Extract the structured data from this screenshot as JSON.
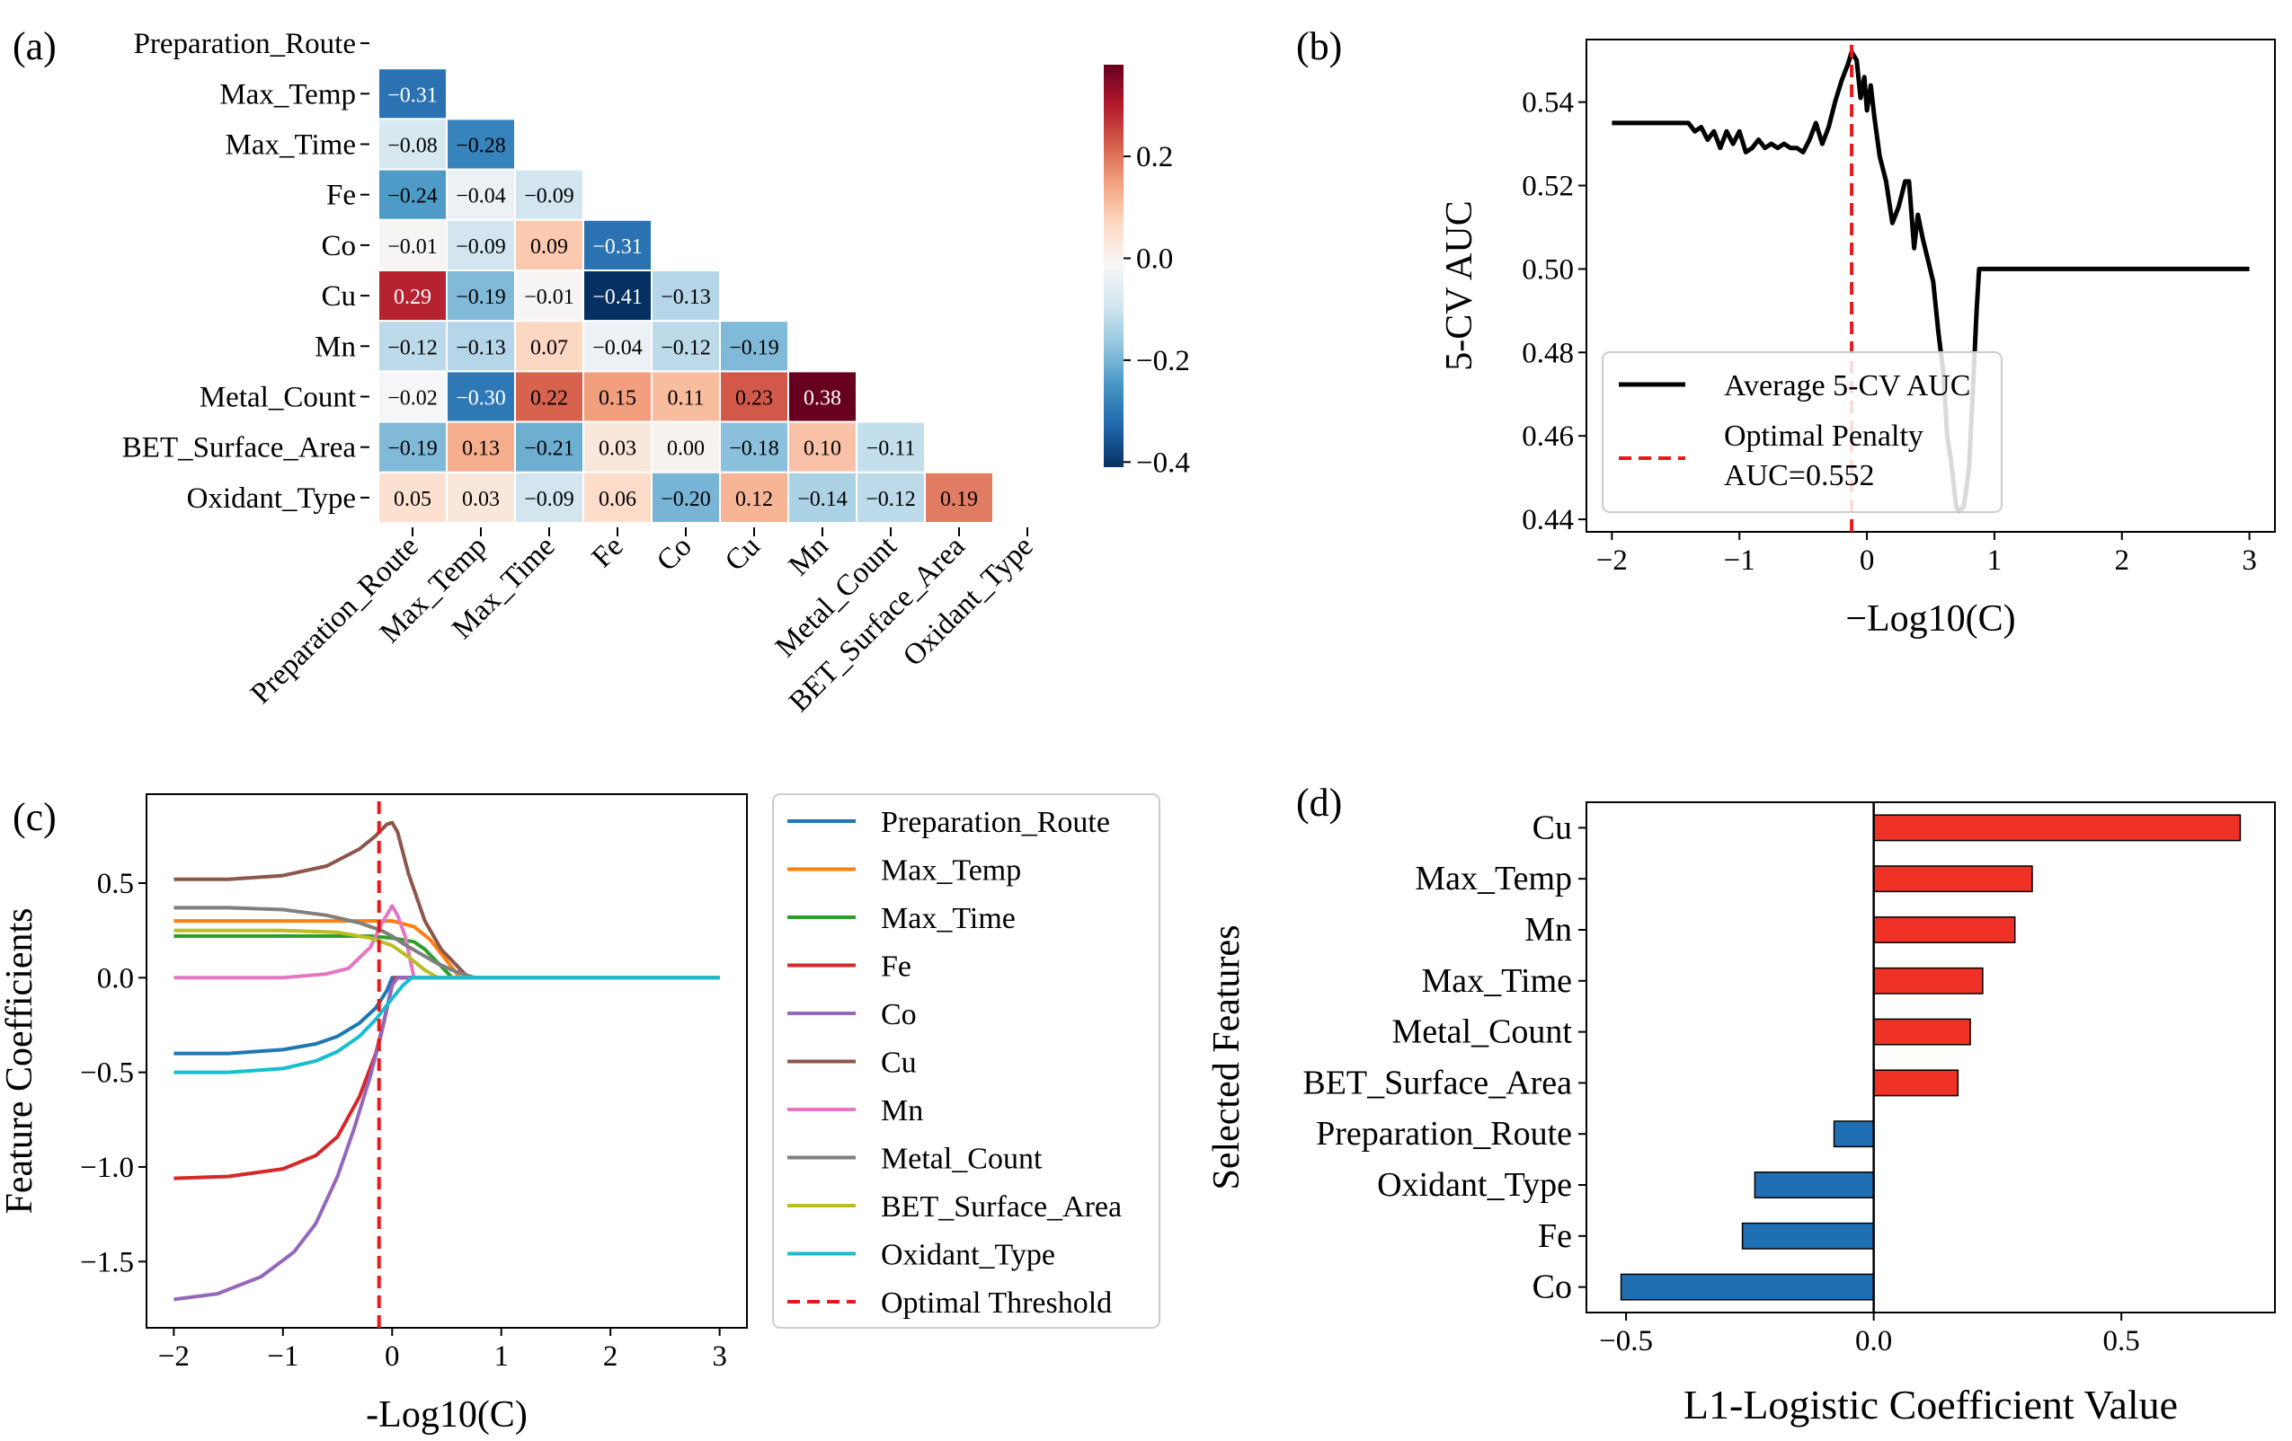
{
  "panels": {
    "a": "(a)",
    "b": "(b)",
    "c": "(c)",
    "d": "(d)"
  },
  "chart_data": [
    {
      "id": "a",
      "type": "heatmap",
      "title": "",
      "variables": [
        "Preparation_Route",
        "Max_Temp",
        "Max_Time",
        "Fe",
        "Co",
        "Cu",
        "Mn",
        "Metal_Count",
        "BET_Surface_Area",
        "Oxidant_Type"
      ],
      "lower_triangle": [
        [],
        [
          -0.31
        ],
        [
          -0.08,
          -0.28
        ],
        [
          -0.24,
          -0.04,
          -0.09
        ],
        [
          -0.01,
          -0.09,
          0.09,
          -0.31
        ],
        [
          0.29,
          -0.19,
          -0.01,
          -0.41,
          -0.13
        ],
        [
          -0.12,
          -0.13,
          0.07,
          -0.04,
          -0.12,
          -0.19
        ],
        [
          -0.02,
          -0.3,
          0.22,
          0.15,
          0.11,
          0.23,
          0.38
        ],
        [
          -0.19,
          0.13,
          -0.21,
          0.03,
          0.0,
          -0.18,
          0.1,
          -0.11
        ],
        [
          0.05,
          0.03,
          -0.09,
          0.06,
          -0.2,
          0.12,
          -0.14,
          -0.12,
          0.19
        ]
      ],
      "colorbar": {
        "min": -0.41,
        "max": 0.38,
        "ticks": [
          0.2,
          0.0,
          -0.2,
          -0.4
        ],
        "tick_labels": [
          "0.2",
          "0.0",
          "−0.2",
          "−0.4"
        ],
        "colormap": "RdBu_r"
      }
    },
    {
      "id": "b",
      "type": "line",
      "xlabel": "−Log10(C)",
      "ylabel": "5-CV AUC",
      "xlim": [
        -2.2,
        3.2
      ],
      "ylim": [
        0.437,
        0.555
      ],
      "xticks": [
        -2,
        -1,
        0,
        1,
        2,
        3
      ],
      "xtick_labels": [
        "−2",
        "−1",
        "0",
        "1",
        "2",
        "3"
      ],
      "yticks": [
        0.44,
        0.46,
        0.48,
        0.5,
        0.52,
        0.54
      ],
      "ytick_labels": [
        "0.44",
        "0.46",
        "0.48",
        "0.50",
        "0.52",
        "0.54"
      ],
      "series": [
        {
          "name": "Average 5-CV AUC",
          "color": "#000000",
          "style": "solid",
          "x": [
            -2,
            -1.4,
            -1.35,
            -1.3,
            -1.25,
            -1.2,
            -1.15,
            -1.1,
            -1.05,
            -1.0,
            -0.95,
            -0.9,
            -0.85,
            -0.8,
            -0.75,
            -0.7,
            -0.65,
            -0.6,
            -0.55,
            -0.5,
            -0.45,
            -0.4,
            -0.35,
            -0.3,
            -0.25,
            -0.2,
            -0.15,
            -0.12,
            -0.08,
            -0.05,
            -0.02,
            0.0,
            0.03,
            0.06,
            0.1,
            0.15,
            0.2,
            0.25,
            0.3,
            0.33,
            0.37,
            0.4,
            0.44,
            0.48,
            0.52,
            0.56,
            0.6,
            0.63,
            0.66,
            0.7,
            0.72,
            0.76,
            0.8,
            0.83,
            0.86,
            0.88,
            1.0,
            2.0,
            3.0
          ],
          "y": [
            0.535,
            0.535,
            0.533,
            0.534,
            0.531,
            0.533,
            0.529,
            0.533,
            0.53,
            0.533,
            0.528,
            0.529,
            0.531,
            0.529,
            0.53,
            0.529,
            0.53,
            0.529,
            0.529,
            0.528,
            0.531,
            0.535,
            0.53,
            0.534,
            0.54,
            0.545,
            0.549,
            0.552,
            0.55,
            0.541,
            0.546,
            0.538,
            0.544,
            0.536,
            0.527,
            0.521,
            0.511,
            0.515,
            0.521,
            0.521,
            0.505,
            0.513,
            0.507,
            0.502,
            0.497,
            0.485,
            0.475,
            0.46,
            0.454,
            0.443,
            0.442,
            0.443,
            0.452,
            0.47,
            0.49,
            0.5,
            0.5,
            0.5,
            0.5
          ]
        },
        {
          "name": "Optimal Penalty\nAUC=0.552",
          "color": "#e41a1c",
          "style": "dashed",
          "x": [
            -0.12,
            -0.12
          ],
          "y": [
            0.437,
            0.555
          ]
        }
      ],
      "legend": {
        "placement": "lower-left",
        "entries": [
          "Average 5-CV AUC",
          "Optimal Penalty",
          "AUC=0.552"
        ]
      }
    },
    {
      "id": "c",
      "type": "line",
      "xlabel": "-Log10(C)",
      "ylabel": "Feature Coefficients",
      "xlim": [
        -2.25,
        3.25
      ],
      "ylim": [
        -1.85,
        0.97
      ],
      "xticks": [
        -2,
        -1,
        0,
        1,
        2,
        3
      ],
      "xtick_labels": [
        "−2",
        "−1",
        "0",
        "1",
        "2",
        "3"
      ],
      "yticks": [
        -1.5,
        -1.0,
        -0.5,
        0.0,
        0.5
      ],
      "ytick_labels": [
        "−1.5",
        "−1.0",
        "−0.5",
        "0.0",
        "0.5"
      ],
      "series": [
        {
          "name": "Preparation_Route",
          "color": "#1f77b4",
          "x": [
            -2,
            -1.5,
            -1.0,
            -0.7,
            -0.5,
            -0.3,
            -0.15,
            -0.05,
            0.0,
            0.1,
            3.0
          ],
          "y": [
            -0.4,
            -0.4,
            -0.38,
            -0.35,
            -0.31,
            -0.24,
            -0.16,
            -0.07,
            0.0,
            0.0,
            0.0
          ]
        },
        {
          "name": "Max_Temp",
          "color": "#ff7f0e",
          "x": [
            -2,
            -1.0,
            -0.5,
            -0.2,
            0.0,
            0.2,
            0.35,
            0.5,
            0.62,
            3.0
          ],
          "y": [
            0.3,
            0.3,
            0.3,
            0.3,
            0.3,
            0.27,
            0.2,
            0.09,
            0.0,
            0.0
          ]
        },
        {
          "name": "Max_Time",
          "color": "#2ca02c",
          "x": [
            -2,
            -1.0,
            -0.5,
            -0.2,
            0.0,
            0.2,
            0.3,
            0.4,
            0.5,
            0.55,
            3.0
          ],
          "y": [
            0.22,
            0.22,
            0.22,
            0.22,
            0.21,
            0.19,
            0.15,
            0.09,
            0.03,
            0.0,
            0.0
          ]
        },
        {
          "name": "Fe",
          "color": "#d62728",
          "x": [
            -2,
            -1.5,
            -1.0,
            -0.7,
            -0.5,
            -0.3,
            -0.15,
            -0.08,
            0.0,
            0.03,
            3.0
          ],
          "y": [
            -1.06,
            -1.05,
            -1.01,
            -0.94,
            -0.84,
            -0.63,
            -0.4,
            -0.24,
            -0.04,
            0.0,
            0.0
          ]
        },
        {
          "name": "Co",
          "color": "#9467bd",
          "x": [
            -2,
            -1.6,
            -1.2,
            -0.9,
            -0.7,
            -0.5,
            -0.35,
            -0.2,
            -0.1,
            0.0,
            0.05,
            3.0
          ],
          "y": [
            -1.7,
            -1.67,
            -1.58,
            -1.45,
            -1.3,
            -1.05,
            -0.8,
            -0.52,
            -0.3,
            -0.04,
            0.0,
            0.0
          ]
        },
        {
          "name": "Cu",
          "color": "#8c564b",
          "x": [
            -2,
            -1.5,
            -1.0,
            -0.6,
            -0.3,
            -0.15,
            -0.05,
            0.0,
            0.05,
            0.15,
            0.3,
            0.45,
            0.6,
            0.7,
            3.0
          ],
          "y": [
            0.52,
            0.52,
            0.54,
            0.59,
            0.68,
            0.75,
            0.81,
            0.82,
            0.77,
            0.55,
            0.3,
            0.15,
            0.06,
            0.0,
            0.0
          ]
        },
        {
          "name": "Mn",
          "color": "#e377c2",
          "x": [
            -2,
            -1.0,
            -0.6,
            -0.4,
            -0.2,
            -0.1,
            -0.03,
            0.0,
            0.05,
            0.12,
            0.2,
            3.0
          ],
          "y": [
            0.0,
            0.0,
            0.02,
            0.05,
            0.16,
            0.28,
            0.35,
            0.38,
            0.33,
            0.22,
            0.0,
            0.0
          ]
        },
        {
          "name": "Metal_Count",
          "color": "#7f7f7f",
          "x": [
            -2,
            -1.5,
            -1.0,
            -0.6,
            -0.3,
            -0.1,
            0.0,
            0.1,
            0.25,
            0.4,
            0.55,
            0.7,
            0.76,
            3.0
          ],
          "y": [
            0.37,
            0.37,
            0.36,
            0.33,
            0.29,
            0.25,
            0.22,
            0.18,
            0.13,
            0.08,
            0.04,
            0.01,
            0.0,
            0.0
          ]
        },
        {
          "name": "BET_Surface_Area",
          "color": "#bcbd22",
          "x": [
            -2,
            -1.0,
            -0.5,
            -0.2,
            0.0,
            0.15,
            0.3,
            0.42,
            3.0
          ],
          "y": [
            0.25,
            0.25,
            0.24,
            0.21,
            0.17,
            0.11,
            0.04,
            0.0,
            0.0
          ]
        },
        {
          "name": "Oxidant_Type",
          "color": "#17becf",
          "x": [
            -2,
            -1.5,
            -1.0,
            -0.7,
            -0.5,
            -0.3,
            -0.15,
            0.0,
            0.1,
            0.18,
            3.0
          ],
          "y": [
            -0.5,
            -0.5,
            -0.48,
            -0.44,
            -0.39,
            -0.31,
            -0.22,
            -0.11,
            -0.04,
            0.0,
            0.0
          ]
        },
        {
          "name": "Optimal Threshold",
          "color": "#e41a1c",
          "style": "dashed",
          "x": [
            -0.12,
            -0.12
          ],
          "y": [
            -1.85,
            0.97
          ]
        }
      ],
      "legend": {
        "placement": "outside-right",
        "entries": [
          "Preparation_Route",
          "Max_Temp",
          "Max_Time",
          "Fe",
          "Co",
          "Cu",
          "Mn",
          "Metal_Count",
          "BET_Surface_Area",
          "Oxidant_Type",
          "Optimal Threshold"
        ]
      }
    },
    {
      "id": "d",
      "type": "bar",
      "orientation": "horizontal",
      "xlabel": "L1-Logistic Coefficient Value",
      "ylabel": "Selected Features",
      "categories": [
        "Cu",
        "Max_Temp",
        "Mn",
        "Max_Time",
        "Metal_Count",
        "BET_Surface_Area",
        "Preparation_Route",
        "Oxidant_Type",
        "Fe",
        "Co"
      ],
      "values": [
        0.74,
        0.32,
        0.285,
        0.22,
        0.195,
        0.17,
        -0.08,
        -0.24,
        -0.265,
        -0.51
      ],
      "positive_color": "#f03226",
      "negative_color": "#1f6fb4",
      "xlim": [
        -0.58,
        0.81
      ],
      "xticks": [
        -0.5,
        0.0,
        0.5
      ],
      "xtick_labels": [
        "−0.5",
        "0.0",
        "0.5"
      ]
    }
  ]
}
